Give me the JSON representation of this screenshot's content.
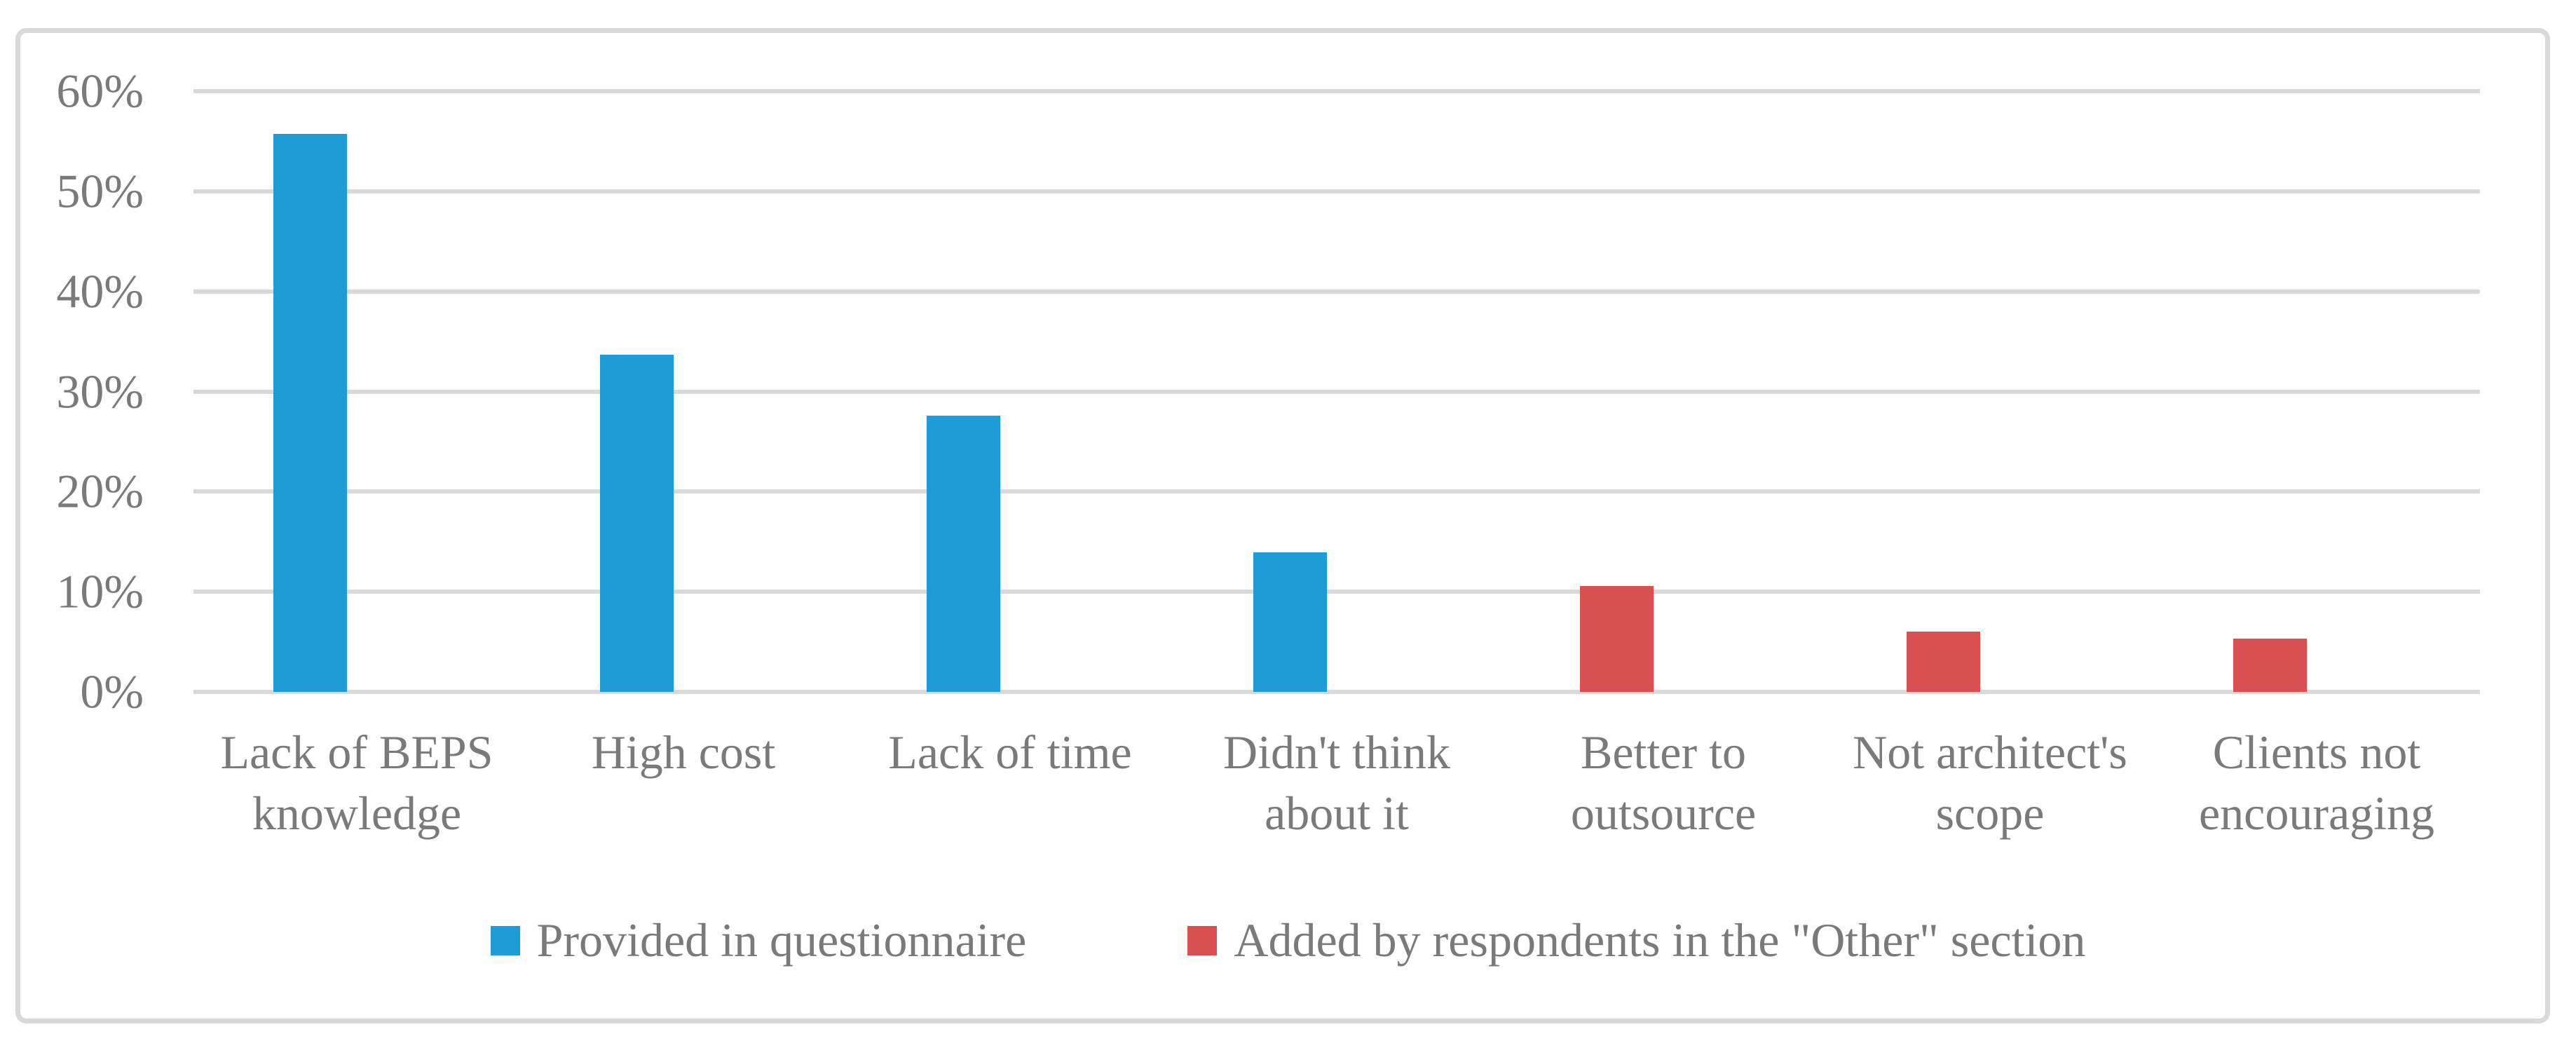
{
  "chart_data": {
    "type": "bar",
    "categories": [
      "Lack of BEPS\nknowledge",
      "High cost",
      "Lack of time",
      "Didn't think\nabout it",
      "Better to\noutsource",
      "Not architect's\nscope",
      "Clients not\nencouraging"
    ],
    "values": [
      55.7,
      33.7,
      27.6,
      13.9,
      10.6,
      6.0,
      5.3
    ],
    "unit": "%",
    "bar_series": [
      0,
      0,
      0,
      0,
      1,
      1,
      1
    ],
    "series": [
      {
        "name": "Provided in questionnaire",
        "color": "#1E9CD8"
      },
      {
        "name": "Added by respondents in the \"Other\" section",
        "color": "#D95052"
      }
    ],
    "ylim": [
      0,
      60
    ],
    "yticks": [
      0,
      10,
      20,
      30,
      40,
      50,
      60
    ],
    "ytick_labels": [
      "0%",
      "10%",
      "20%",
      "30%",
      "40%",
      "50%",
      "60%"
    ],
    "xlabel": "",
    "ylabel": "",
    "grid": "horizontal",
    "legend_position": "bottom",
    "colors": {
      "gridline": "#D9D9D9",
      "frame_border": "#D9D9D9",
      "text": "#7A7A7A",
      "background": "#FFFFFF"
    }
  }
}
